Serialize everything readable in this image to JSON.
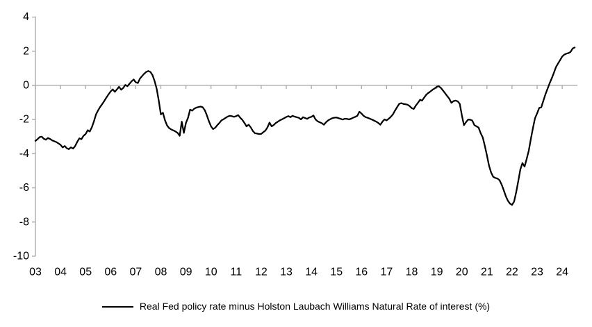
{
  "page": {
    "background": "#ffffff"
  },
  "chart_data": {
    "type": "line",
    "title": "",
    "legend": "Real Fed policy rate minus Holston Laubach Williams Natural Rate of interest (%)",
    "legend_position": "bottom-center",
    "grid": "off",
    "zero_line": true,
    "axis_color": "#a6a6a6",
    "text_color": "#000000",
    "series_color": "#000000",
    "ylim": [
      -10,
      4
    ],
    "y_ticks": [
      4,
      2,
      0,
      -2,
      -4,
      -6,
      -8,
      -10
    ],
    "x_tick_labels": [
      "03",
      "04",
      "05",
      "06",
      "07",
      "08",
      "09",
      "10",
      "11",
      "12",
      "13",
      "14",
      "15",
      "16",
      "17",
      "18",
      "19",
      "20",
      "21",
      "22",
      "23",
      "24"
    ],
    "x_start": "2003-01",
    "x_end": "2024-07",
    "x_frequency": "monthly",
    "series": [
      {
        "name": "Real Fed policy rate minus Holston Laubach Williams Natural Rate of interest (%)",
        "color": "#000000",
        "values": [
          -3.25,
          -3.15,
          -3.03,
          -3.0,
          -3.12,
          -3.18,
          -3.08,
          -3.14,
          -3.22,
          -3.27,
          -3.32,
          -3.4,
          -3.48,
          -3.63,
          -3.55,
          -3.68,
          -3.73,
          -3.63,
          -3.7,
          -3.55,
          -3.3,
          -3.1,
          -3.15,
          -2.95,
          -2.85,
          -2.62,
          -2.7,
          -2.45,
          -2.1,
          -1.7,
          -1.45,
          -1.25,
          -1.08,
          -0.9,
          -0.7,
          -0.52,
          -0.35,
          -0.23,
          -0.38,
          -0.23,
          -0.08,
          -0.25,
          -0.15,
          0.03,
          -0.05,
          0.1,
          0.24,
          0.35,
          0.18,
          0.14,
          0.4,
          0.54,
          0.68,
          0.79,
          0.84,
          0.79,
          0.6,
          0.25,
          -0.2,
          -0.9,
          -1.7,
          -1.6,
          -2.05,
          -2.35,
          -2.5,
          -2.58,
          -2.64,
          -2.7,
          -2.78,
          -2.95,
          -2.12,
          -2.78,
          -2.2,
          -1.9,
          -1.42,
          -1.48,
          -1.36,
          -1.3,
          -1.27,
          -1.24,
          -1.28,
          -1.45,
          -1.75,
          -2.1,
          -2.4,
          -2.56,
          -2.48,
          -2.33,
          -2.2,
          -2.05,
          -1.98,
          -1.9,
          -1.82,
          -1.78,
          -1.8,
          -1.84,
          -1.8,
          -1.74,
          -1.9,
          -2.02,
          -2.2,
          -2.4,
          -2.3,
          -2.46,
          -2.67,
          -2.8,
          -2.82,
          -2.85,
          -2.84,
          -2.74,
          -2.65,
          -2.46,
          -2.18,
          -2.4,
          -2.32,
          -2.2,
          -2.12,
          -2.04,
          -1.98,
          -1.92,
          -1.85,
          -1.8,
          -1.86,
          -1.78,
          -1.83,
          -1.86,
          -1.9,
          -1.99,
          -1.86,
          -1.91,
          -1.96,
          -1.88,
          -1.84,
          -1.76,
          -1.99,
          -2.1,
          -2.16,
          -2.21,
          -2.3,
          -2.16,
          -2.05,
          -1.98,
          -1.92,
          -1.89,
          -1.88,
          -1.92,
          -1.96,
          -2.0,
          -1.95,
          -1.96,
          -1.99,
          -1.95,
          -1.89,
          -1.84,
          -1.78,
          -1.54,
          -1.65,
          -1.78,
          -1.86,
          -1.9,
          -1.95,
          -2.0,
          -2.06,
          -2.12,
          -2.2,
          -2.3,
          -2.12,
          -1.99,
          -2.05,
          -1.95,
          -1.84,
          -1.7,
          -1.48,
          -1.28,
          -1.08,
          -1.04,
          -1.08,
          -1.1,
          -1.13,
          -1.21,
          -1.33,
          -1.38,
          -1.18,
          -1.02,
          -0.84,
          -0.89,
          -0.71,
          -0.54,
          -0.44,
          -0.35,
          -0.25,
          -0.18,
          -0.08,
          -0.05,
          -0.15,
          -0.3,
          -0.46,
          -0.62,
          -0.78,
          -1.02,
          -0.92,
          -0.89,
          -0.93,
          -1.08,
          -1.75,
          -2.33,
          -2.15,
          -2.0,
          -2.01,
          -2.06,
          -2.33,
          -2.4,
          -2.47,
          -2.8,
          -3.05,
          -3.55,
          -4.1,
          -4.7,
          -5.1,
          -5.35,
          -5.42,
          -5.45,
          -5.55,
          -5.8,
          -6.13,
          -6.48,
          -6.75,
          -6.92,
          -7.0,
          -6.8,
          -6.25,
          -5.6,
          -4.92,
          -4.55,
          -4.75,
          -4.3,
          -3.82,
          -3.14,
          -2.5,
          -1.92,
          -1.64,
          -1.32,
          -1.28,
          -0.9,
          -0.52,
          -0.2,
          0.12,
          0.42,
          0.73,
          1.07,
          1.28,
          1.48,
          1.69,
          1.8,
          1.86,
          1.89,
          1.96,
          2.16,
          2.22
        ]
      }
    ]
  }
}
